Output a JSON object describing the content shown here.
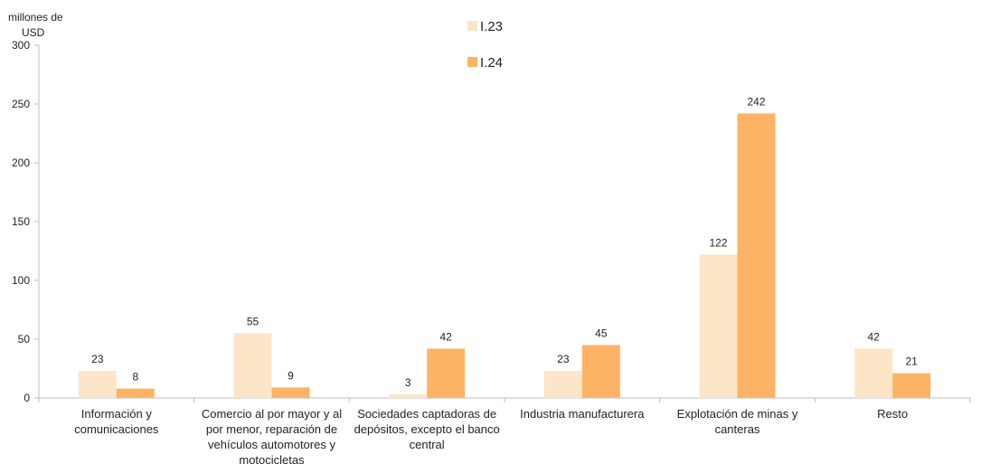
{
  "chart_data": {
    "type": "bar",
    "ylabel": "millones de USD",
    "ylim": [
      0,
      300
    ],
    "yticks": [
      0,
      50,
      100,
      150,
      200,
      250,
      300
    ],
    "grid": false,
    "legend_position": "top-center",
    "categories": [
      [
        "Información y",
        "comunicaciones"
      ],
      [
        "Comercio al por mayor y al",
        "por menor, reparación de",
        "vehículos automotores y",
        "motocicletas"
      ],
      [
        "Sociedades captadoras de",
        "depósitos, excepto el banco",
        "central"
      ],
      [
        "Industria manufacturera"
      ],
      [
        "Explotación de minas y",
        "canteras"
      ],
      [
        "Resto"
      ]
    ],
    "series": [
      {
        "name": "I.23",
        "color": "#fde5c8",
        "values": [
          23,
          55,
          3,
          23,
          122,
          42
        ]
      },
      {
        "name": "I.24",
        "color": "#fdb366",
        "values": [
          8,
          9,
          42,
          45,
          242,
          21
        ]
      }
    ]
  }
}
